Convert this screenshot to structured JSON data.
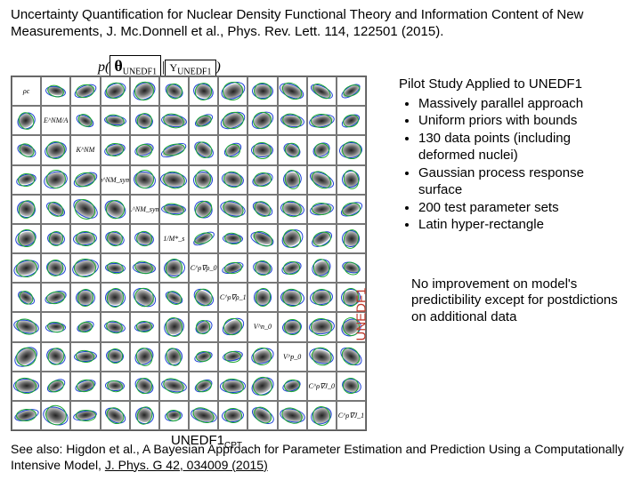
{
  "title": "Uncertainty Quantification for Nuclear Density Functional Theory and Information Content of New Measurements, J. Mc.Donnell et al., Phys. Rev. Lett. 114, 122501 (2015).",
  "formula": {
    "p": "p",
    "lpar": "(",
    "theta": "θ",
    "th_sub": "UNEDF1",
    "bar": "|",
    "Y": "Y",
    "Y_sub": "UNEDF1",
    "rpar": ")"
  },
  "study": {
    "heading": "Pilot Study Applied to UNEDF1",
    "bullets": [
      "Massively parallel approach",
      "Uniform priors with bounds",
      "130 data points (including deformed nuclei)",
      "Gaussian process response surface",
      "200 test parameter sets",
      "Latin hyper-rectangle"
    ]
  },
  "conclusion": "No improvement on model's predictibility except for postdictions on additional data",
  "ylabel": "UNEDF1",
  "xlabel": "UNEDF1",
  "xlabel_sub": "CPT",
  "diag_labels": [
    "ρc",
    "E^NM/A",
    "K^NM",
    "a^NM_sym",
    "L^NM_sym",
    "1/M*_s",
    "C^ρ∇ρ_0",
    "C^ρ∇ρ_1",
    "V^n_0",
    "V^p_0",
    "C^ρ∇J_0",
    "C^ρ∇J_1"
  ],
  "footer": {
    "pre": "See also: Higdon et al., A Bayesian Approach for Parameter Estimation and Prediction Using a Computationally Intensive Model, ",
    "link": "J. Phys. G 42, 034009 (2015)"
  }
}
